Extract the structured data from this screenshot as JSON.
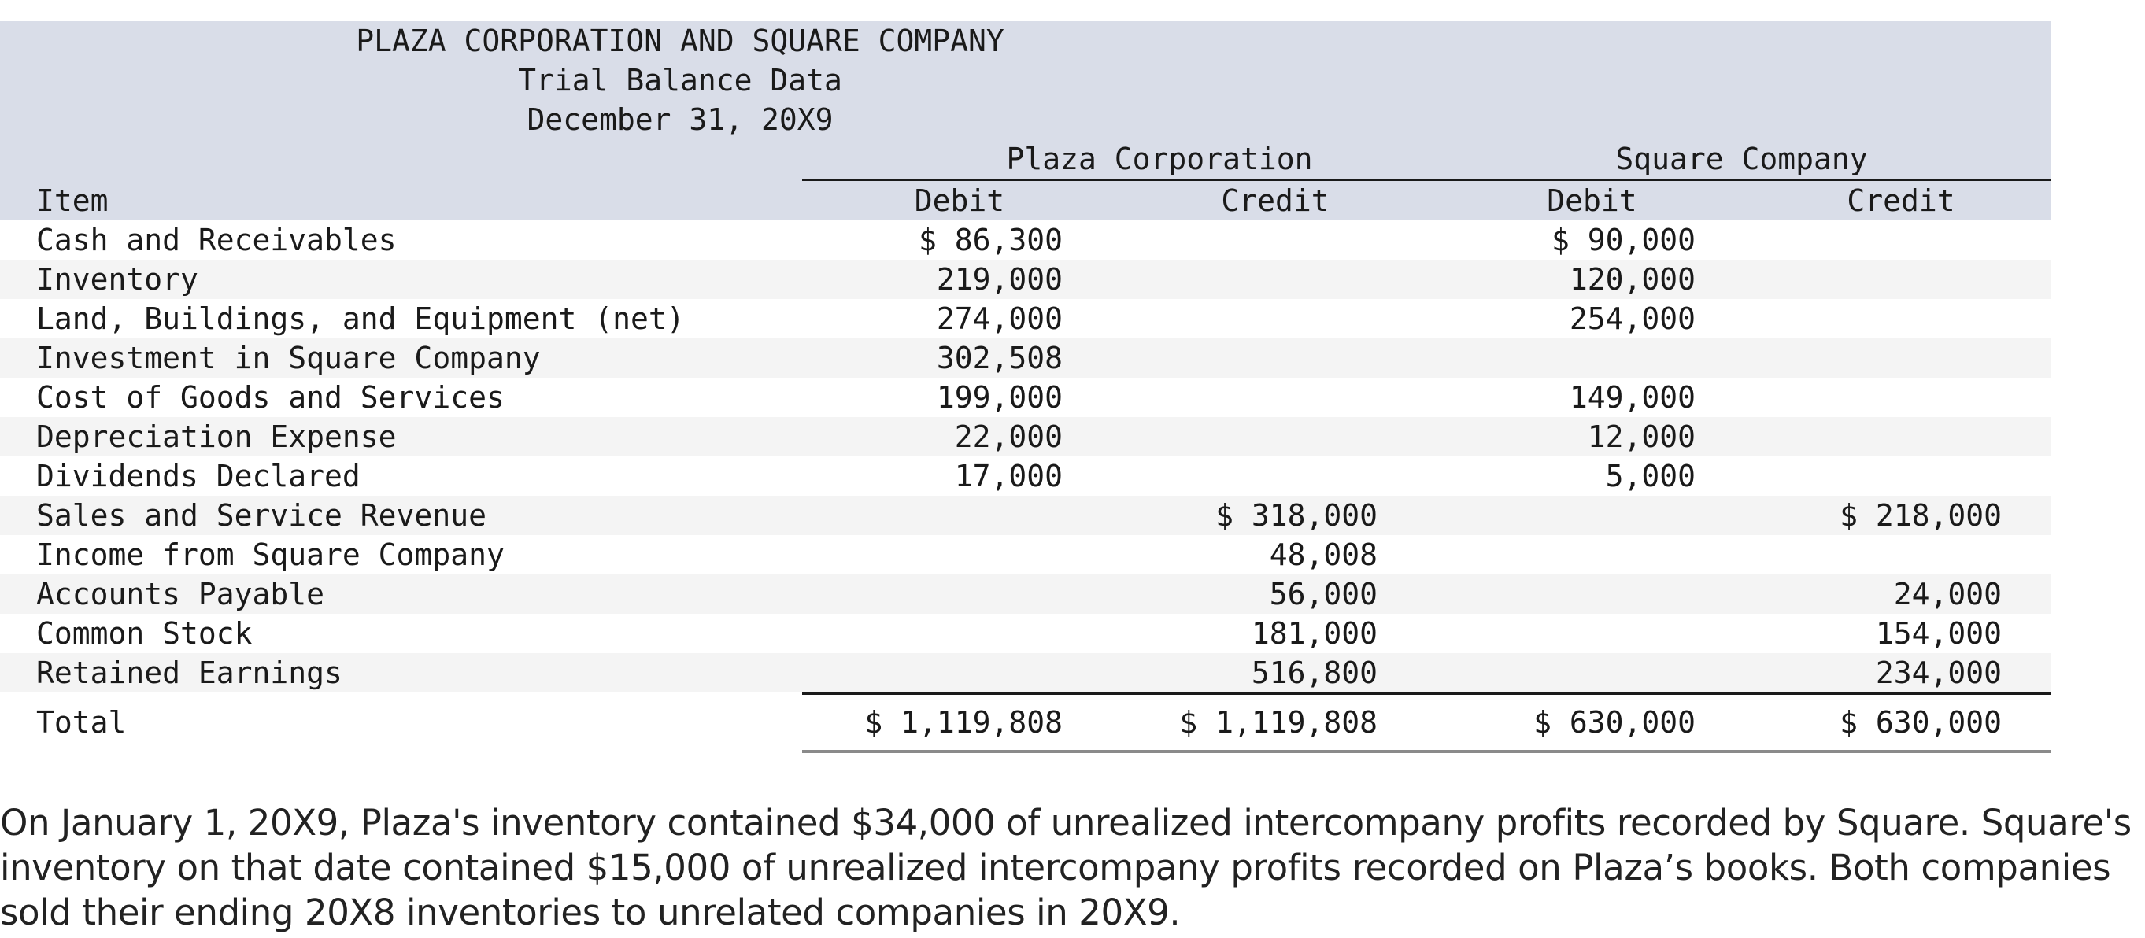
{
  "header": {
    "title": "PLAZA CORPORATION AND SQUARE COMPANY",
    "subtitle": "Trial Balance Data",
    "date": "December 31, 20X9",
    "group_plaza": "Plaza Corporation",
    "group_square": "Square Company"
  },
  "columns": {
    "item": "Item",
    "plaza_debit": "Debit",
    "plaza_credit": "Credit",
    "square_debit": "Debit",
    "square_credit": "Credit"
  },
  "rows": [
    {
      "item": "Cash and Receivables",
      "pd": "$ 86,300",
      "pc": "",
      "sd": "$ 90,000",
      "sc": ""
    },
    {
      "item": "Inventory",
      "pd": "219,000",
      "pc": "",
      "sd": "120,000",
      "sc": ""
    },
    {
      "item": "Land, Buildings, and Equipment (net)",
      "pd": "274,000",
      "pc": "",
      "sd": "254,000",
      "sc": ""
    },
    {
      "item": "Investment in Square Company",
      "pd": "302,508",
      "pc": "",
      "sd": "",
      "sc": ""
    },
    {
      "item": "Cost of Goods and Services",
      "pd": "199,000",
      "pc": "",
      "sd": "149,000",
      "sc": ""
    },
    {
      "item": "Depreciation Expense",
      "pd": "22,000",
      "pc": "",
      "sd": "12,000",
      "sc": ""
    },
    {
      "item": "Dividends Declared",
      "pd": "17,000",
      "pc": "",
      "sd": "5,000",
      "sc": ""
    },
    {
      "item": "Sales and Service Revenue",
      "pd": "",
      "pc": "$ 318,000",
      "sd": "",
      "sc": "$ 218,000"
    },
    {
      "item": "Income from Square Company",
      "pd": "",
      "pc": "48,008",
      "sd": "",
      "sc": ""
    },
    {
      "item": "Accounts Payable",
      "pd": "",
      "pc": "56,000",
      "sd": "",
      "sc": "24,000"
    },
    {
      "item": "Common Stock",
      "pd": "",
      "pc": "181,000",
      "sd": "",
      "sc": "154,000"
    },
    {
      "item": "Retained Earnings",
      "pd": "",
      "pc": "516,800",
      "sd": "",
      "sc": "234,000"
    }
  ],
  "total": {
    "item": "Total",
    "pd": "$ 1,119,808",
    "pc": "$ 1,119,808",
    "sd": "$ 630,000",
    "sc": "$ 630,000"
  },
  "note": "On January 1, 20X9, Plaza's inventory contained $34,000 of unrealized intercompany profits recorded by Square. Square's inventory on that date contained $15,000 of unrealized intercompany profits recorded on Plaza’s books. Both companies sold their ending 20X8 inventories to unrelated companies in 20X9."
}
